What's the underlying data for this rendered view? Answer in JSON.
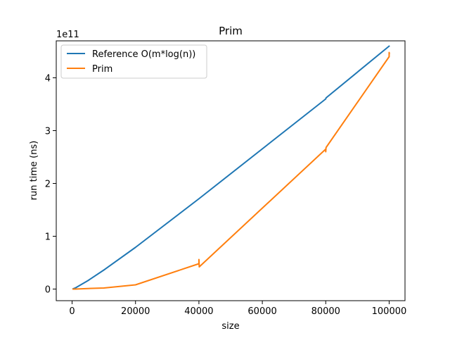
{
  "chart_data": {
    "type": "line",
    "title": "Prim",
    "xlabel": "size",
    "ylabel": "run time (ns)",
    "y_offset_label": "1e11",
    "xlim": [
      -5000,
      105000
    ],
    "ylim": [
      -0.22,
      4.7
    ],
    "xticks": [
      0,
      20000,
      40000,
      60000,
      80000,
      100000
    ],
    "xtick_labels": [
      "0",
      "20000",
      "40000",
      "60000",
      "80000",
      "100000"
    ],
    "yticks": [
      0,
      1,
      2,
      3,
      4
    ],
    "ytick_labels": [
      "0",
      "1",
      "2",
      "3",
      "4"
    ],
    "grid": false,
    "legend_position": "top-left",
    "series": [
      {
        "name": "Reference O(m*log(n))",
        "color": "#1f77b4",
        "x": [
          100,
          1000,
          5000,
          10000,
          20000,
          40000,
          80000,
          80100,
          100000,
          100100
        ],
        "y": [
          0.0,
          0.02,
          0.16,
          0.36,
          0.79,
          1.71,
          3.6,
          3.62,
          4.6,
          4.61
        ]
      },
      {
        "name": "Prim",
        "color": "#ff7f0e",
        "x": [
          100,
          1000,
          5000,
          10000,
          20000,
          40000,
          40000,
          40100,
          80000,
          80000,
          80100,
          100000,
          100000,
          100100
        ],
        "y": [
          0.0,
          0.0,
          0.01,
          0.02,
          0.08,
          0.48,
          0.56,
          0.42,
          2.65,
          2.6,
          2.68,
          4.4,
          4.48,
          4.45
        ]
      }
    ]
  }
}
